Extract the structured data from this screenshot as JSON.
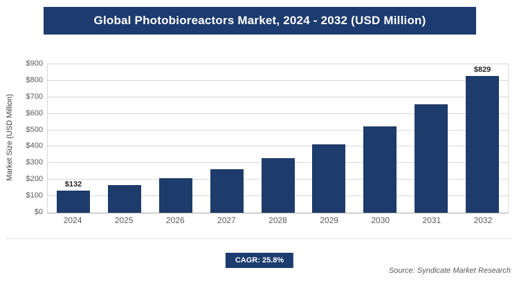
{
  "header": {
    "title": "Global Photobioreactors Market, 2024 - 2032 (USD Million)"
  },
  "chart_data": {
    "type": "bar",
    "title": "Global Photobioreactors Market, 2024 - 2032 (USD Million)",
    "categories": [
      "2024",
      "2025",
      "2026",
      "2027",
      "2028",
      "2029",
      "2030",
      "2031",
      "2032"
    ],
    "values": [
      132,
      166,
      209,
      263,
      331,
      416,
      524,
      658,
      829
    ],
    "xlabel": "",
    "ylabel": "Market Size (USD Million)",
    "ylim": [
      0,
      900
    ],
    "y_tick_step": 100,
    "y_tick_labels": [
      "$0",
      "$100",
      "$200",
      "$300",
      "$400",
      "$500",
      "$600",
      "$700",
      "$800",
      "$900"
    ],
    "grid": true,
    "legend": false,
    "bar_color": "#1e3c6b",
    "data_labels": [
      {
        "index": 0,
        "label": "$132"
      },
      {
        "index": 8,
        "label": "$829"
      }
    ]
  },
  "footer": {
    "cagr_label": "CAGR: 25.8%",
    "source": "Source: Syndicate Market Research"
  },
  "colors": {
    "accent": "#1c3b6e",
    "grid": "#d9d9d9",
    "axis_text": "#595959"
  }
}
